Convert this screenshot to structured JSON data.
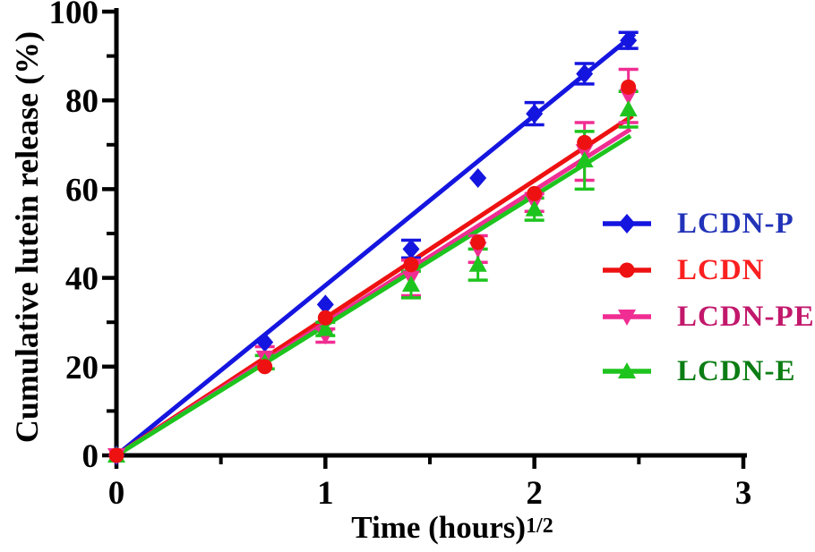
{
  "figure": {
    "ylabel": "Cumulative lutein release (%)",
    "xlabel_base": "Time (hours)",
    "xlabel_sup": "1/2"
  },
  "chart_data": {
    "type": "scatter",
    "title": "",
    "xlabel": "Time (hours)^1/2",
    "ylabel": "Cumulative lutein release (%)",
    "xlim": [
      0,
      3
    ],
    "ylim": [
      0,
      100
    ],
    "grid": "off",
    "legend_position": "right",
    "x_major_ticks": [
      0,
      1,
      2,
      3
    ],
    "x_minor_ticks": [
      0.5,
      1.5,
      2.5
    ],
    "y_major_ticks": [
      0,
      20,
      40,
      60,
      80,
      100
    ],
    "y_minor_ticks": [
      10,
      30,
      50,
      70,
      90
    ],
    "x_values": [
      0,
      0.71,
      1,
      1.41,
      1.73,
      2,
      2.24,
      2.45
    ],
    "series": [
      {
        "name": "LCDN-P",
        "marker": "diamond",
        "color": "#1515e0",
        "label_color": "#2233b8",
        "values": [
          0,
          25.5,
          34,
          46.5,
          62.5,
          77,
          86,
          93.5
        ],
        "errors": [
          0,
          0,
          0,
          2,
          0,
          2.5,
          2.3,
          1.8
        ],
        "fit_line": {
          "x0": 0,
          "y0": 0,
          "x1": 2.48,
          "y1": 95
        }
      },
      {
        "name": "LCDN",
        "marker": "circle",
        "color": "#ee1111",
        "label_color": "#fb2020",
        "values": [
          0,
          20,
          31,
          43,
          48,
          59,
          70.5,
          83
        ],
        "errors": [
          0,
          0,
          0,
          0,
          0,
          0,
          0,
          0
        ],
        "fit_line": {
          "x0": 0,
          "y0": 0,
          "x1": 2.47,
          "y1": 76.5
        }
      },
      {
        "name": "LCDN-PE",
        "marker": "triangle-down",
        "color": "#f02d92",
        "label_color": "#c2186c",
        "values": [
          0,
          22,
          27,
          40,
          46.5,
          57,
          68.5,
          81
        ],
        "errors": [
          0,
          2.5,
          1.5,
          4,
          3,
          2,
          6.5,
          6
        ],
        "fit_line": {
          "x0": 0,
          "y0": 0,
          "x1": 2.46,
          "y1": 73.5
        }
      },
      {
        "name": "LCDN-E",
        "marker": "triangle-up",
        "color": "#1ec41e",
        "label_color": "#0c7d14",
        "values": [
          0,
          21,
          28.5,
          38.5,
          43,
          55.5,
          66.5,
          78
        ],
        "errors": [
          0,
          1.5,
          1.5,
          3,
          3.5,
          2.5,
          6.5,
          4
        ],
        "fit_line": {
          "x0": 0,
          "y0": 0,
          "x1": 2.46,
          "y1": 72
        }
      }
    ]
  }
}
